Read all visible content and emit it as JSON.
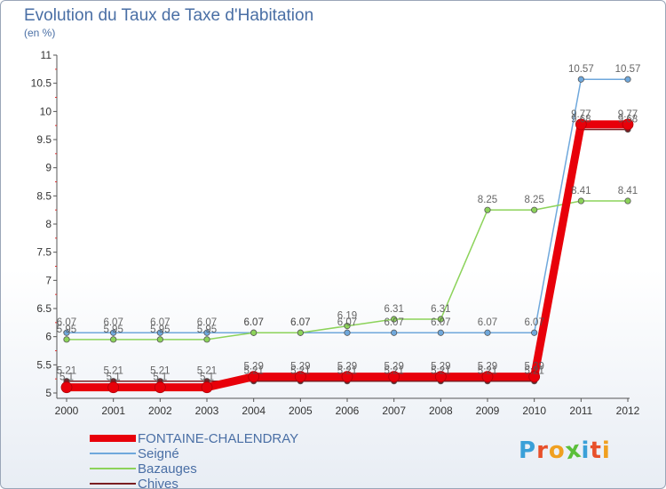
{
  "title": "Evolution du Taux de Taxe d'Habitation",
  "unit_label": "(en %)",
  "logo": {
    "letters": [
      "P",
      "r",
      "o",
      "x",
      "i",
      "t",
      "i"
    ],
    "colors": [
      "#3aa0d8",
      "#e8502a",
      "#f0a020",
      "#5bbf3a",
      "#3aa0d8",
      "#e8502a",
      "#f0a020"
    ]
  },
  "chart_data": {
    "type": "line",
    "title": "Evolution du Taux de Taxe d'Habitation",
    "ylabel": "(en %)",
    "x": [
      "2000",
      "2001",
      "2002",
      "2003",
      "2004",
      "2005",
      "2006",
      "2007",
      "2008",
      "2009",
      "2010",
      "2011",
      "2012"
    ],
    "ylim": [
      5,
      11
    ],
    "yticks": [
      "5",
      "5.5",
      "6",
      "6.5",
      "7",
      "7.5",
      "8",
      "8.5",
      "9",
      "9.5",
      "10",
      "10.5",
      "11"
    ],
    "grid": false,
    "legend_position": "bottom-left",
    "series": [
      {
        "name": "FONTAINE-CHALENDRAY",
        "color": "#e8000a",
        "values": [
          5.1,
          5.1,
          5.1,
          5.1,
          5.29,
          5.29,
          5.29,
          5.29,
          5.29,
          5.29,
          5.29,
          9.77,
          9.77
        ],
        "labels": [
          "5.1",
          "5.1",
          "5.1",
          "5.1",
          "5.29",
          "5.29",
          "5.29",
          "5.29",
          "5.29",
          "5.29",
          "5.29",
          "9.77",
          "9.77"
        ]
      },
      {
        "name": "Seigné",
        "color": "#6fa8dc",
        "values": [
          6.07,
          6.07,
          6.07,
          6.07,
          6.07,
          6.07,
          6.07,
          6.07,
          6.07,
          6.07,
          6.07,
          10.57,
          10.57
        ],
        "labels": [
          "6.07",
          "6.07",
          "6.07",
          "6.07",
          "6.07",
          "6.07",
          "6.07",
          "6.07",
          "6.07",
          "6.07",
          "6.07",
          "10.57",
          "10.57"
        ]
      },
      {
        "name": "Bazauges",
        "color": "#8cd35a",
        "values": [
          5.95,
          5.95,
          5.95,
          5.95,
          6.07,
          6.07,
          6.19,
          6.31,
          6.31,
          8.25,
          8.25,
          8.41,
          8.41
        ],
        "labels": [
          "5.95",
          "5.95",
          "5.95",
          "5.95",
          "6.07",
          "6.07",
          "6.19",
          "6.31",
          "6.31",
          "8.25",
          "8.25",
          "8.41",
          "8.41"
        ]
      },
      {
        "name": "Chives",
        "color": "#7a1e22",
        "values": [
          5.21,
          5.21,
          5.21,
          5.21,
          5.21,
          5.21,
          5.21,
          5.21,
          5.21,
          5.21,
          5.21,
          9.68,
          9.68
        ],
        "labels": [
          "5.21",
          "5.21",
          "5.21",
          "5.21",
          "5.21",
          "5.21",
          "5.21",
          "5.21",
          "5.21",
          "5.21",
          "5.21",
          "9.68",
          "9.68"
        ]
      }
    ]
  }
}
